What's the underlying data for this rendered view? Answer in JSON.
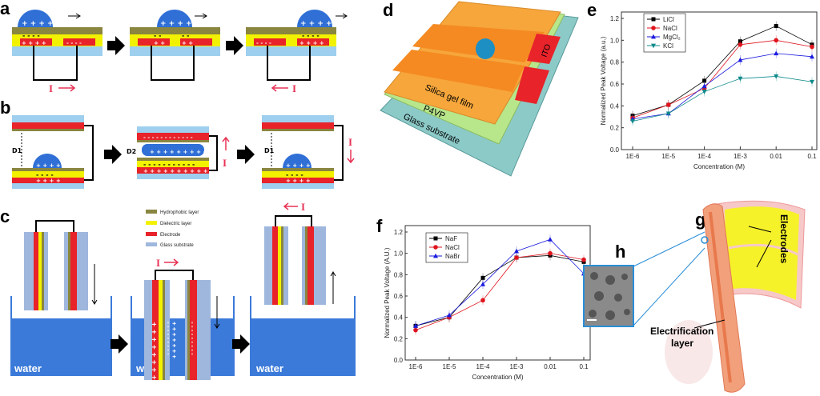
{
  "panels": {
    "a": "a",
    "b": "b",
    "c": "c",
    "d": "d",
    "e": "e",
    "f": "f",
    "g": "g",
    "h": "h"
  },
  "panel_a": {
    "current_label": "I",
    "charges_pos": "+ + + +",
    "charges_neg": "- - - -"
  },
  "panel_b": {
    "d1": "D1",
    "d2": "D2",
    "current_label": "I"
  },
  "panel_c": {
    "legend": [
      "Hydrophobic layer",
      "Dielectric layer",
      "Electrode",
      "Glass substrate"
    ],
    "water": "water",
    "current_label": "I"
  },
  "panel_d": {
    "layers": [
      "Silica gel film",
      "P4VP",
      "Glass substrate"
    ],
    "ito": "ITO"
  },
  "panel_g": {
    "electrodes": "Electrodes",
    "electrification": "Electrification",
    "layer": "layer"
  },
  "colors": {
    "hydrophobic": "#8a8640",
    "dielectric": "#f2f200",
    "electrode": "#e8232a",
    "glass": "#9ecfee",
    "drop": "#2f6fd6",
    "water": "#3b7ad9"
  },
  "chart_data": [
    {
      "type": "line",
      "panel": "e",
      "xlabel": "Concentration (M)",
      "ylabel": "Normalized Peak Voltage (a.u.)",
      "categories": [
        "1E-6",
        "1E-5",
        "1E-4",
        "1E-3",
        "0.01",
        "0.1"
      ],
      "ylim": [
        0,
        1.2
      ],
      "yticks": [
        "0.0",
        "0.2",
        "0.4",
        "0.6",
        "0.8",
        "1.0",
        "1.2"
      ],
      "legend_position": "top-left",
      "series": [
        {
          "name": "LiCl",
          "color": "#000000",
          "marker": "square",
          "values": [
            0.31,
            0.41,
            0.63,
            0.99,
            1.13,
            0.96
          ]
        },
        {
          "name": "NaCl",
          "color": "#e0141e",
          "marker": "circle",
          "values": [
            0.29,
            0.41,
            0.56,
            0.96,
            1.0,
            0.94
          ]
        },
        {
          "name": "MgCl₂",
          "color": "#1a1adf",
          "marker": "triangle-up",
          "values": [
            0.28,
            0.33,
            0.58,
            0.82,
            0.88,
            0.85
          ]
        },
        {
          "name": "KCl",
          "color": "#0f8a8a",
          "marker": "triangle-down",
          "values": [
            0.26,
            0.33,
            0.53,
            0.65,
            0.67,
            0.62
          ]
        }
      ]
    },
    {
      "type": "line",
      "panel": "f",
      "xlabel": "Concentration (M)",
      "ylabel": "Normalized Peak Voltage (A.U.)",
      "categories": [
        "1E-6",
        "1E-5",
        "1E-4",
        "1E-3",
        "0.01",
        "0.1"
      ],
      "ylim": [
        0,
        1.2
      ],
      "yticks": [
        "0.0",
        "0.2",
        "0.4",
        "0.6",
        "0.8",
        "1.0",
        "1.2"
      ],
      "legend_position": "top-left",
      "series": [
        {
          "name": "NaF",
          "color": "#000000",
          "marker": "square",
          "values": [
            0.32,
            0.4,
            0.77,
            0.96,
            0.98,
            0.92
          ]
        },
        {
          "name": "NaCl",
          "color": "#e0141e",
          "marker": "circle",
          "values": [
            0.28,
            0.4,
            0.56,
            0.96,
            1.0,
            0.94
          ]
        },
        {
          "name": "NaBr",
          "color": "#1a1adf",
          "marker": "triangle-up",
          "values": [
            0.32,
            0.42,
            0.71,
            1.02,
            1.13,
            0.81
          ]
        }
      ]
    }
  ]
}
